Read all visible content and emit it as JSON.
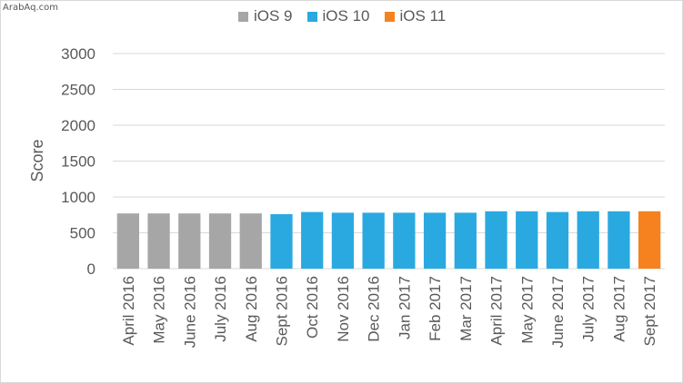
{
  "watermark": "ArabAq.com",
  "chart_data": {
    "type": "bar",
    "ylabel": "Score",
    "xlabel": "",
    "title": "",
    "ylim": [
      0,
      3000
    ],
    "yticks": [
      0,
      500,
      1000,
      1500,
      2000,
      2500,
      3000
    ],
    "grid": true,
    "legend_position": "top",
    "categories": [
      "April 2016",
      "May 2016",
      "June 2016",
      "July 2016",
      "Aug 2016",
      "Sept 2016",
      "Oct 2016",
      "Nov 2016",
      "Dec 2016",
      "Jan 2017",
      "Feb 2017",
      "Mar 2017",
      "April 2017",
      "May 2017",
      "June 2017",
      "July 2017",
      "Aug 2017",
      "Sept 2017"
    ],
    "values": [
      770,
      770,
      770,
      770,
      770,
      760,
      790,
      780,
      780,
      780,
      780,
      780,
      800,
      800,
      790,
      800,
      800,
      800
    ],
    "bar_series": [
      "iOS 9",
      "iOS 9",
      "iOS 9",
      "iOS 9",
      "iOS 9",
      "iOS 10",
      "iOS 10",
      "iOS 10",
      "iOS 10",
      "iOS 10",
      "iOS 10",
      "iOS 10",
      "iOS 10",
      "iOS 10",
      "iOS 10",
      "iOS 10",
      "iOS 10",
      "iOS 11"
    ],
    "series": [
      {
        "name": "iOS 9",
        "color": "#a6a6a6"
      },
      {
        "name": "iOS 10",
        "color": "#2aa9e0"
      },
      {
        "name": "iOS 11",
        "color": "#f5821f"
      }
    ]
  }
}
